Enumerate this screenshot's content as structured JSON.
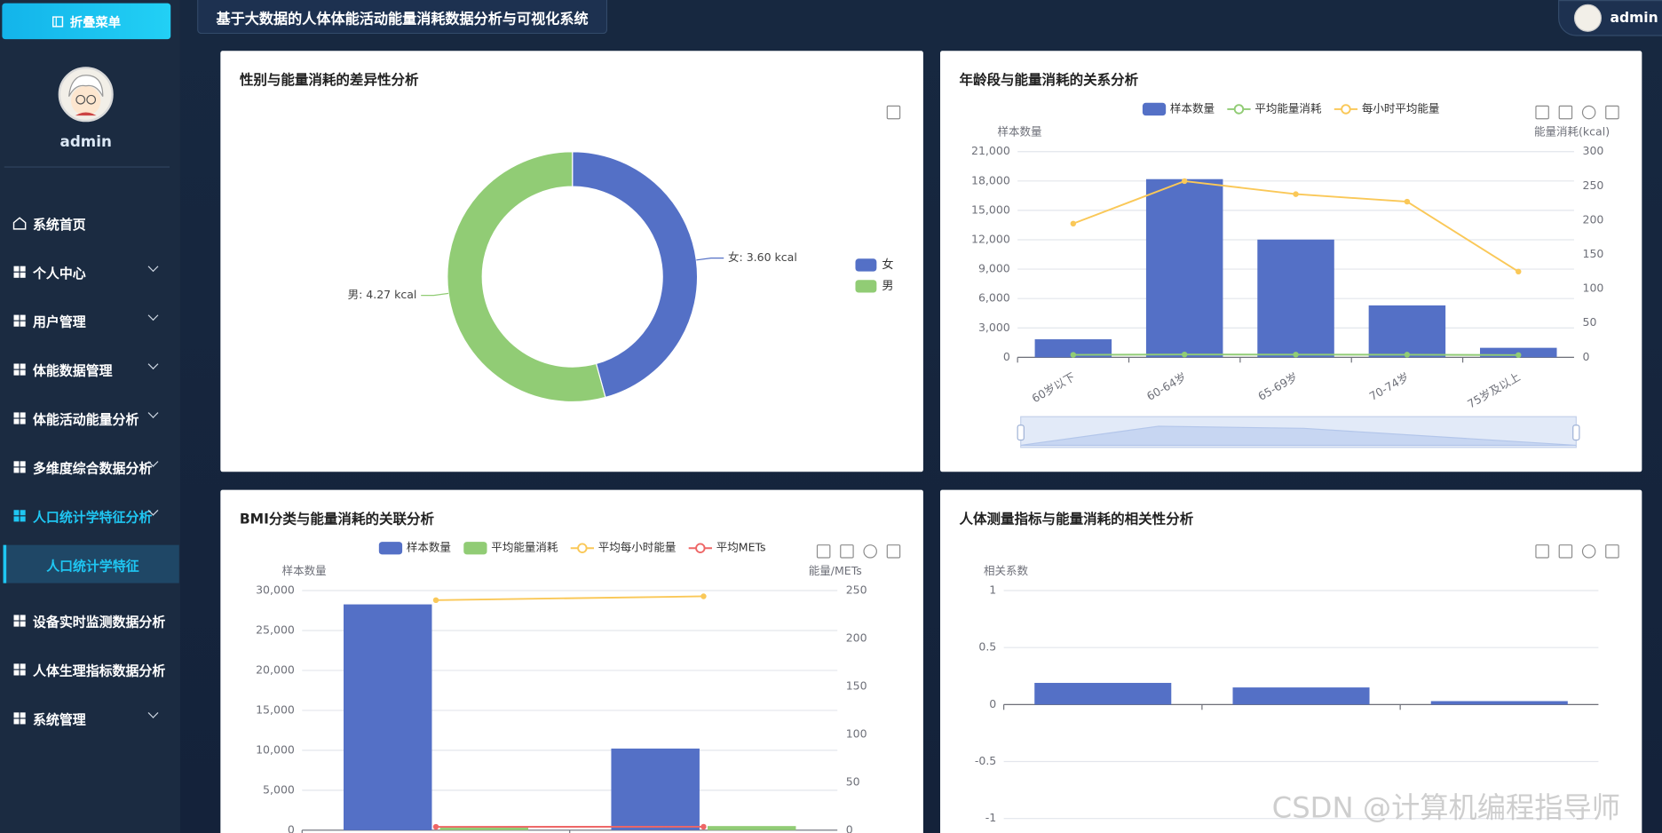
{
  "header": {
    "title": "基于大数据的人体体能活动能量消耗数据分析与可视化系统",
    "user": "admin"
  },
  "sidebar": {
    "toggle": "折叠菜单",
    "username": "admin",
    "menu": [
      "系统首页",
      "个人中心",
      "用户管理",
      "体能数据管理",
      "体能活动能量分析",
      "多维度综合数据分析",
      "人口统计学特征分析",
      "设备实时监测数据分析",
      "人体生理指标数据分析",
      "系统管理"
    ],
    "submenu": [
      "人口统计学特征"
    ]
  },
  "chart_data": [
    {
      "type": "pie",
      "title": "性别与能量消耗的差异性分析",
      "categories": [
        "女",
        "男"
      ],
      "values": [
        3.6,
        4.27
      ],
      "value_labels": [
        "女: 3.60 kcal",
        "男: 4.27 kcal"
      ],
      "colors": [
        "#5470c6",
        "#91cc75"
      ],
      "legend": "right"
    },
    {
      "type": "combo",
      "title": "年龄段与能量消耗的关系分析",
      "categories": [
        "60岁以下",
        "60-64岁",
        "65-69岁",
        "70-74岁",
        "75岁及以上"
      ],
      "series": [
        {
          "name": "样本数量",
          "type": "bar",
          "color": "#5470c6",
          "values": [
            1840,
            18190,
            12020,
            5300,
            970
          ]
        },
        {
          "name": "平均能量消耗",
          "type": "line",
          "axis": "y2",
          "color": "#91cc75",
          "values": [
            3.6,
            4.1,
            3.9,
            3.8,
            3.3
          ]
        },
        {
          "name": "每小时平均能量",
          "type": "line",
          "axis": "y2",
          "color": "#fac858",
          "values": [
            195,
            257,
            238,
            227,
            125
          ]
        }
      ],
      "y_label": "样本数量",
      "y2_label": "能量消耗(kcal)",
      "ylim": [
        0,
        21000
      ],
      "yticks": [
        0,
        {
          "value": 3000,
          "label": "3,000"
        },
        {
          "value": 6000,
          "label": "6,000"
        },
        {
          "value": 9000,
          "label": "9,000"
        },
        {
          "value": 12000,
          "label": "12,000"
        },
        {
          "value": 15000,
          "label": "15,000"
        },
        {
          "value": 18000,
          "label": "18,000"
        },
        {
          "value": 21000,
          "label": "21,000"
        }
      ],
      "y2lim": [
        0,
        300
      ],
      "y2ticks": [
        0,
        50,
        100,
        150,
        200,
        250,
        300
      ],
      "grid": true,
      "legend": "top"
    },
    {
      "type": "combo",
      "title": "BMI分类与能量消耗的关联分析",
      "categories": [
        null,
        null
      ],
      "series": [
        {
          "name": "样本数量",
          "type": "bar",
          "color": "#5470c6",
          "values": [
            28270,
            10220
          ]
        },
        {
          "name": "平均能量消耗",
          "type": "bar",
          "axis": "y2",
          "color": "#91cc75",
          "values": [
            4.1,
            4.3
          ]
        },
        {
          "name": "平均每小时能量",
          "type": "line",
          "axis": "y2",
          "color": "#fac858",
          "values": [
            240,
            244
          ]
        },
        {
          "name": "平均METs",
          "type": "line",
          "axis": "y2",
          "color": "#ee6666",
          "values": [
            3.5,
            3.6
          ]
        }
      ],
      "y_label": "样本数量",
      "y2_label": "能量/METs",
      "ylim": [
        0,
        30000
      ],
      "yticks": [
        0,
        {
          "value": 5000,
          "label": "5,000"
        },
        {
          "value": 10000,
          "label": "10,000"
        },
        {
          "value": 15000,
          "label": "15,000"
        },
        {
          "value": 20000,
          "label": "20,000"
        },
        {
          "value": 25000,
          "label": "25,000"
        },
        {
          "value": 30000,
          "label": "30,000"
        }
      ],
      "y2lim": [
        0,
        250
      ],
      "y2ticks": [
        0,
        50,
        100,
        150,
        200,
        250
      ],
      "grid": true,
      "legend": "top"
    },
    {
      "type": "combo",
      "title": "人体测量指标与能量消耗的相关性分析",
      "categories": [
        null,
        null,
        null
      ],
      "values": [
        0.19,
        0.15,
        0.03
      ],
      "color": "#5470c6",
      "y_label": "相关系数",
      "ylim": [
        -1,
        1
      ],
      "yticks": [
        -1,
        -0.5,
        0,
        0.5,
        1
      ],
      "grid": true
    }
  ],
  "watermark": "CSDN @计算机编程指导师"
}
